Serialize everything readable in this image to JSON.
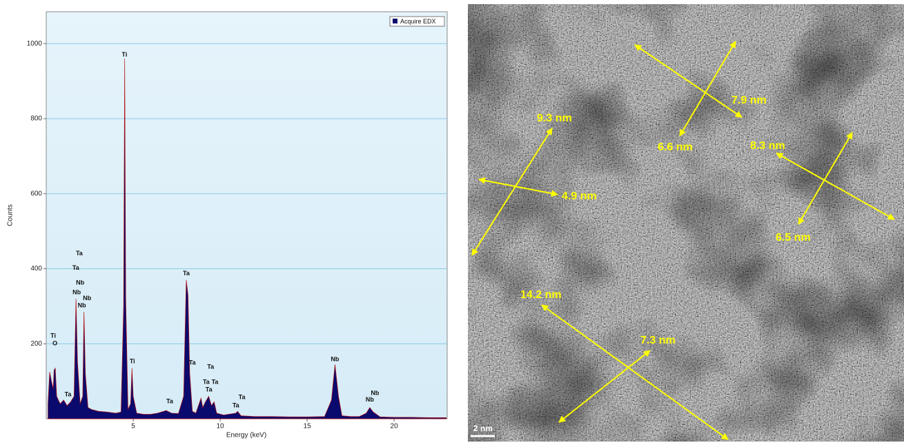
{
  "chart_data": {
    "type": "area",
    "xlabel": "Energy (keV)",
    "ylabel": "Counts",
    "xlim": [
      0,
      23.05
    ],
    "ylim": [
      0,
      1085
    ],
    "xticks": [
      5,
      10,
      15,
      20
    ],
    "yticks": [
      200,
      400,
      600,
      800,
      1000
    ],
    "grid": true,
    "legend": "upper right",
    "x": [
      0.1,
      0.2,
      0.3,
      0.4,
      0.45,
      0.52,
      0.6,
      0.8,
      1.0,
      1.2,
      1.4,
      1.6,
      1.71,
      1.8,
      1.95,
      2.1,
      2.17,
      2.25,
      2.4,
      2.6,
      3.0,
      3.5,
      4.0,
      4.3,
      4.45,
      4.51,
      4.57,
      4.7,
      4.85,
      4.93,
      5.0,
      5.2,
      5.6,
      6.0,
      6.4,
      6.9,
      7.2,
      7.6,
      7.9,
      8.05,
      8.15,
      8.25,
      8.4,
      8.6,
      8.9,
      9.0,
      9.15,
      9.34,
      9.5,
      9.65,
      9.8,
      10.2,
      10.9,
      11.0,
      11.2,
      12,
      13,
      14,
      15,
      16,
      16.4,
      16.6,
      16.8,
      17,
      17.5,
      18,
      18.4,
      18.6,
      18.8,
      19.2,
      20,
      21,
      22,
      23
    ],
    "series": [
      {
        "name": "Acquire EDX",
        "color": "#0a0a6e",
        "values": [
          40,
          125,
          100,
          80,
          130,
          135,
          60,
          40,
          50,
          35,
          45,
          60,
          320,
          150,
          40,
          60,
          285,
          120,
          30,
          25,
          20,
          18,
          15,
          18,
          300,
          960,
          320,
          25,
          40,
          135,
          60,
          15,
          12,
          12,
          15,
          22,
          15,
          14,
          60,
          370,
          330,
          120,
          20,
          15,
          55,
          30,
          45,
          60,
          35,
          45,
          15,
          10,
          15,
          20,
          8,
          6,
          6,
          5,
          5,
          6,
          50,
          145,
          60,
          8,
          6,
          6,
          15,
          30,
          18,
          5,
          4,
          4,
          3,
          3
        ]
      }
    ],
    "annotations": [
      {
        "text": "Ti",
        "x": 0.4,
        "y": 220
      },
      {
        "text": "O",
        "x": 0.5,
        "y": 200
      },
      {
        "text": "Ta",
        "x": 1.25,
        "y": 64
      },
      {
        "text": "Ta",
        "x": 1.9,
        "y": 440
      },
      {
        "text": "Ta",
        "x": 1.7,
        "y": 402
      },
      {
        "text": "Nb",
        "x": 1.95,
        "y": 362
      },
      {
        "text": "Nb",
        "x": 1.75,
        "y": 336
      },
      {
        "text": "Nb",
        "x": 2.35,
        "y": 321
      },
      {
        "text": "Nb",
        "x": 2.05,
        "y": 301
      },
      {
        "text": "Ti",
        "x": 4.5,
        "y": 970
      },
      {
        "text": "Ti",
        "x": 4.95,
        "y": 152
      },
      {
        "text": "Ta",
        "x": 8.05,
        "y": 387
      },
      {
        "text": "Ta",
        "x": 8.4,
        "y": 149
      },
      {
        "text": "Ta",
        "x": 9.45,
        "y": 138
      },
      {
        "text": "Ta",
        "x": 9.2,
        "y": 97
      },
      {
        "text": "Ta",
        "x": 9.7,
        "y": 97
      },
      {
        "text": "Ta",
        "x": 9.35,
        "y": 77
      },
      {
        "text": "Ta",
        "x": 11.25,
        "y": 57
      },
      {
        "text": "Ta",
        "x": 10.9,
        "y": 35
      },
      {
        "text": "Ta",
        "x": 7.1,
        "y": 46
      },
      {
        "text": "Nb",
        "x": 16.6,
        "y": 158
      },
      {
        "text": "Nb",
        "x": 18.9,
        "y": 68
      },
      {
        "text": "Nb",
        "x": 18.6,
        "y": 50
      }
    ]
  },
  "image": {
    "labels": [
      "9.3 nm",
      "4.9 nm",
      "7.9 nm",
      "6.6 nm",
      "8.3 nm",
      "6.5 nm",
      "14.2 nm",
      "7.3 nm"
    ],
    "scale_bar": "2 nm"
  }
}
